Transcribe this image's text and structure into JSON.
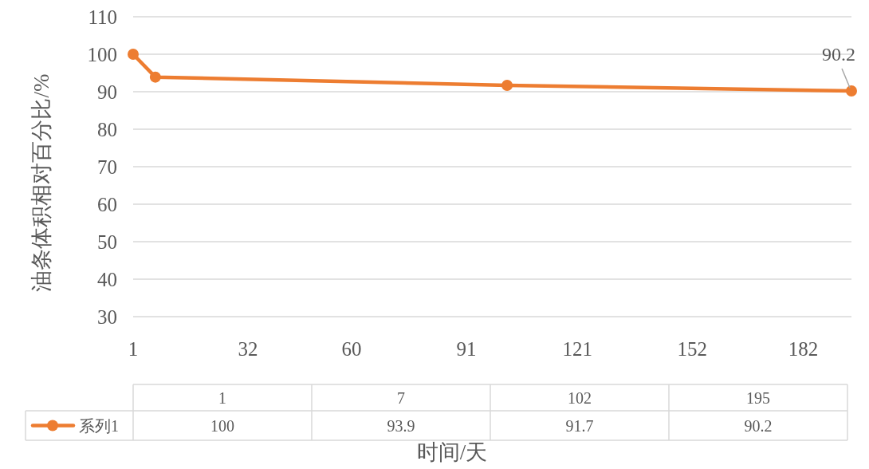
{
  "chart_data": {
    "type": "line",
    "ylabel": "油条体积相对百分比/%",
    "xlabel": "时间/天",
    "x": [
      1,
      7,
      102,
      195
    ],
    "series": [
      {
        "name": "系列1",
        "color": "#ed7d31",
        "values": [
          100,
          93.9,
          91.7,
          90.2
        ],
        "value_labels": [
          null,
          null,
          null,
          "90.2"
        ]
      }
    ],
    "xlim": [
      1,
      195
    ],
    "xticks": [
      1,
      32,
      60,
      91,
      121,
      152,
      182
    ],
    "ylim": [
      30,
      110
    ],
    "yticks": [
      30,
      40,
      50,
      60,
      70,
      80,
      90,
      100,
      110
    ],
    "annotations": [
      "1",
      "7",
      "102",
      "195",
      "100",
      "93.9",
      "91.7",
      "90.2"
    ],
    "grid": "y",
    "marker": "circle",
    "line_style": "solid",
    "legend": "bottom"
  }
}
